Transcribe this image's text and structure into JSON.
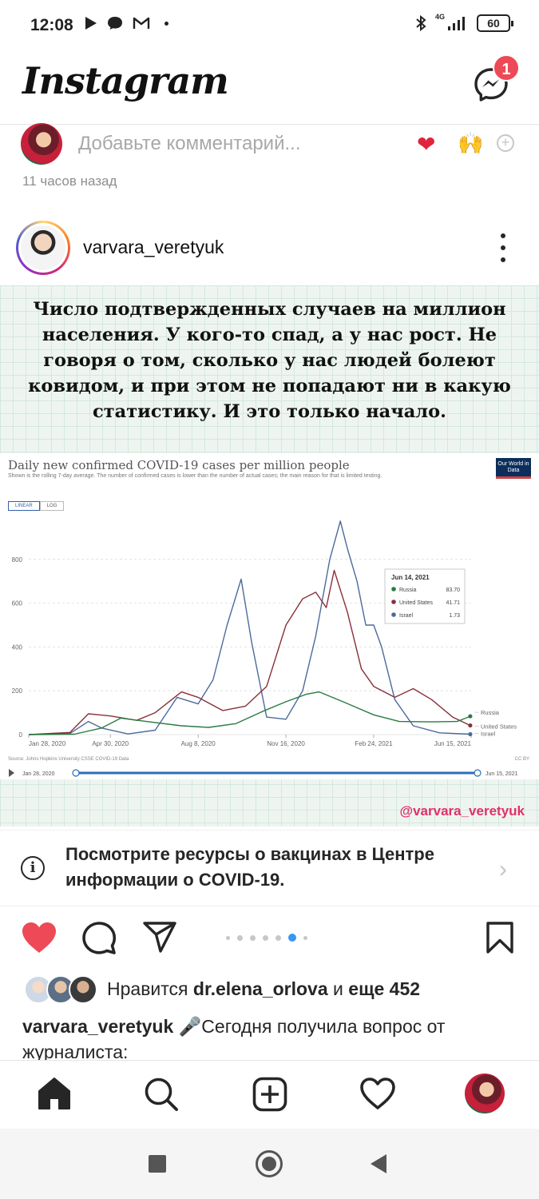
{
  "status_bar": {
    "time": "12:08",
    "network": "4G",
    "battery": "60"
  },
  "app": {
    "title": "Instagram",
    "messenger_badge": "1"
  },
  "previous_post": {
    "comment_placeholder": "Добавьте комментарий...",
    "time_ago": "11 часов назад",
    "quick_reactions": [
      "❤",
      "🙌"
    ]
  },
  "post": {
    "username": "varvara_veretyuk",
    "image_text": "Число подтвержденных случаев на миллион населения. У кого-то спад, а у нас рост. Не говоря о том, сколько у нас людей болеют ковидом, и при этом не попадают ни в какую статистику. И это только начало.",
    "image_handle": "@varvara_veretyuk",
    "carousel": {
      "count": 7,
      "active_index": 5
    },
    "covid_banner": "Посмотрите ресурсы о вакцинах в Центре информации о COVID-19.",
    "likes": {
      "prefix": "Нравится",
      "user": "dr.elena_orlova",
      "joiner": "и",
      "others": "еще 452"
    },
    "caption": {
      "username": "varvara_veretyuk",
      "text": "🎤Сегодня получила вопрос от журналиста:"
    }
  },
  "chart_data": {
    "type": "line",
    "title": "Daily new confirmed COVID-19 cases per million people",
    "subtitle": "Shown is the rolling 7-day average. The number of confirmed cases is lower than the number of actual cases; the main reason for that is limited testing.",
    "brand": "Our World in Data",
    "scale_tabs": [
      "LINEAR",
      "LOG"
    ],
    "active_scale": "LINEAR",
    "x_ticks": [
      "Jan 28, 2020",
      "Apr 30, 2020",
      "Aug 8, 2020",
      "Nov 16, 2020",
      "Feb 24, 2021",
      "Jun 15, 2021"
    ],
    "y_ticks": [
      0,
      200,
      400,
      600,
      800
    ],
    "ylim": [
      0,
      1000
    ],
    "series": [
      {
        "name": "Israel",
        "color": "#4c6a9c",
        "points": [
          [
            "2020-01-28",
            0
          ],
          [
            "2020-03-15",
            5
          ],
          [
            "2020-04-05",
            60
          ],
          [
            "2020-04-20",
            30
          ],
          [
            "2020-05-20",
            3
          ],
          [
            "2020-06-20",
            20
          ],
          [
            "2020-07-15",
            170
          ],
          [
            "2020-08-08",
            140
          ],
          [
            "2020-08-25",
            250
          ],
          [
            "2020-09-10",
            500
          ],
          [
            "2020-09-26",
            710
          ],
          [
            "2020-10-08",
            420
          ],
          [
            "2020-10-25",
            80
          ],
          [
            "2020-11-16",
            70
          ],
          [
            "2020-12-05",
            200
          ],
          [
            "2020-12-20",
            450
          ],
          [
            "2021-01-05",
            800
          ],
          [
            "2021-01-17",
            975
          ],
          [
            "2021-01-25",
            850
          ],
          [
            "2021-02-05",
            700
          ],
          [
            "2021-02-15",
            500
          ],
          [
            "2021-02-24",
            500
          ],
          [
            "2021-03-05",
            400
          ],
          [
            "2021-03-20",
            160
          ],
          [
            "2021-04-10",
            40
          ],
          [
            "2021-05-10",
            8
          ],
          [
            "2021-06-14",
            1.73
          ]
        ]
      },
      {
        "name": "United States",
        "color": "#883039",
        "points": [
          [
            "2020-01-28",
            0
          ],
          [
            "2020-03-15",
            10
          ],
          [
            "2020-04-05",
            95
          ],
          [
            "2020-04-30",
            85
          ],
          [
            "2020-05-30",
            65
          ],
          [
            "2020-06-20",
            100
          ],
          [
            "2020-07-20",
            195
          ],
          [
            "2020-08-08",
            170
          ],
          [
            "2020-09-05",
            110
          ],
          [
            "2020-10-01",
            130
          ],
          [
            "2020-10-25",
            220
          ],
          [
            "2020-11-16",
            500
          ],
          [
            "2020-12-05",
            620
          ],
          [
            "2020-12-20",
            650
          ],
          [
            "2021-01-01",
            580
          ],
          [
            "2021-01-10",
            750
          ],
          [
            "2021-01-25",
            560
          ],
          [
            "2021-02-10",
            300
          ],
          [
            "2021-02-24",
            220
          ],
          [
            "2021-03-20",
            170
          ],
          [
            "2021-04-10",
            210
          ],
          [
            "2021-05-01",
            160
          ],
          [
            "2021-05-25",
            80
          ],
          [
            "2021-06-14",
            41.71
          ]
        ]
      },
      {
        "name": "Russia",
        "color": "#2a7a42",
        "points": [
          [
            "2020-01-28",
            0
          ],
          [
            "2020-03-20",
            2
          ],
          [
            "2020-04-20",
            30
          ],
          [
            "2020-05-12",
            75
          ],
          [
            "2020-06-10",
            60
          ],
          [
            "2020-07-20",
            40
          ],
          [
            "2020-08-20",
            33
          ],
          [
            "2020-09-20",
            50
          ],
          [
            "2020-10-20",
            105
          ],
          [
            "2020-11-16",
            150
          ],
          [
            "2020-12-10",
            185
          ],
          [
            "2020-12-24",
            195
          ],
          [
            "2021-01-20",
            150
          ],
          [
            "2021-02-24",
            90
          ],
          [
            "2021-03-25",
            60
          ],
          [
            "2021-05-01",
            58
          ],
          [
            "2021-05-30",
            60
          ],
          [
            "2021-06-14",
            83.7
          ]
        ]
      }
    ],
    "tooltip": {
      "date": "Jun 14, 2021",
      "rows": [
        {
          "name": "Russia",
          "value": "83.70",
          "color": "#2a7a42"
        },
        {
          "name": "United States",
          "value": "41.71",
          "color": "#883039"
        },
        {
          "name": "Israel",
          "value": "1.73",
          "color": "#4c6a9c"
        }
      ]
    },
    "source": "Source: Johns Hopkins University CSSE COVID-19 Data",
    "license": "CC BY",
    "timeline_start": "Jan 28, 2020",
    "timeline_end": "Jun 15, 2021"
  }
}
